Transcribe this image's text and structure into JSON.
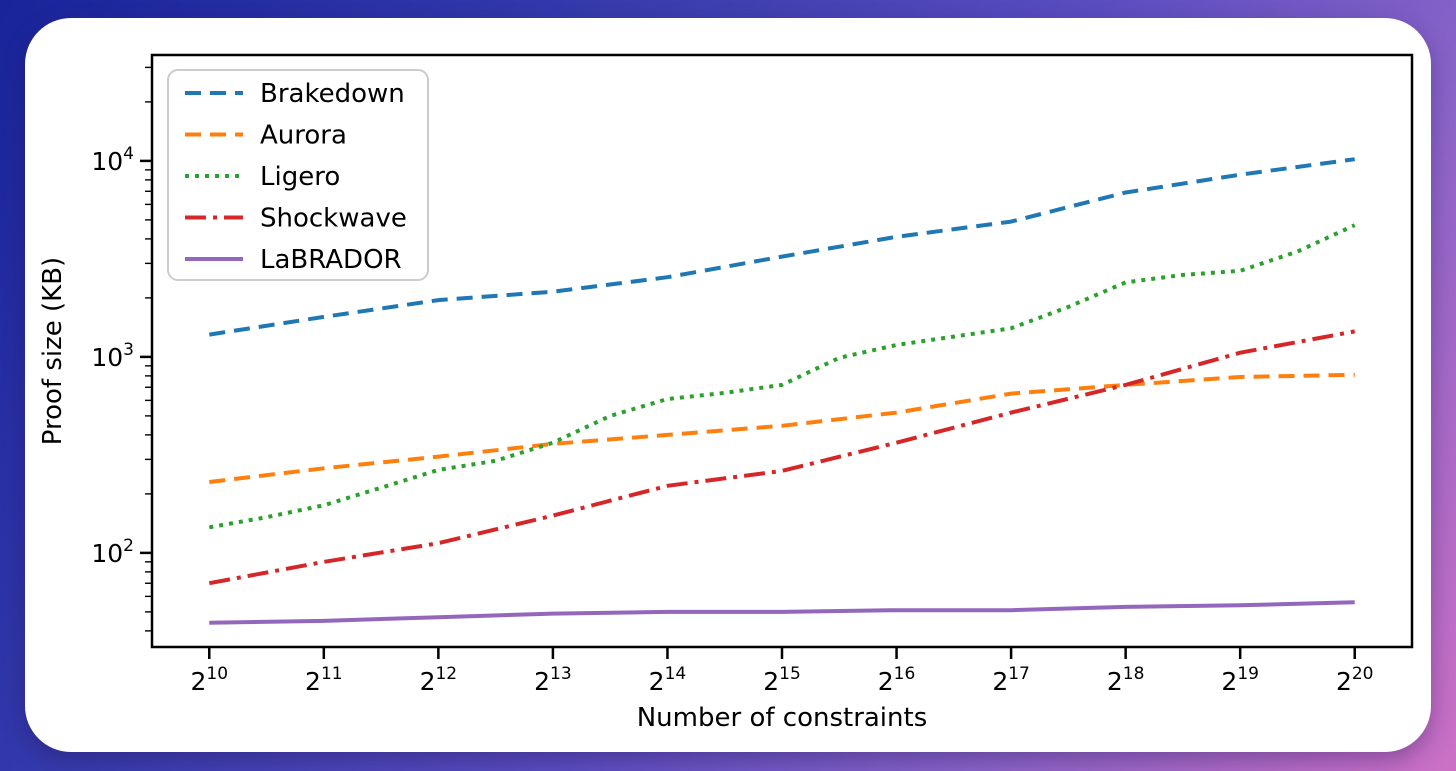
{
  "background": {
    "gradient_top_left": "#19249a",
    "gradient_mid": "#5a4dc0",
    "gradient_bottom_right": "#cc70c5",
    "card_color": "#ffffff"
  },
  "chart_data": {
    "type": "line",
    "title": "",
    "xlabel": "Number of constraints",
    "ylabel": "Proof size (KB)",
    "grid": false,
    "x_axis": {
      "scale": "log2-exponent",
      "tick_base": 2,
      "tick_exponents": [
        10,
        11,
        12,
        13,
        14,
        15,
        16,
        17,
        18,
        19,
        20
      ],
      "lim_exponents": [
        9.5,
        20.5
      ]
    },
    "y_axis": {
      "scale": "log",
      "tick_base": 10,
      "major_tick_exponents": [
        2,
        3,
        4
      ],
      "ylim": [
        33.1,
        34700
      ],
      "unit": "KB"
    },
    "legend": {
      "position": "upper left"
    },
    "series": [
      {
        "name": "Brakedown",
        "color": "#1f77b4",
        "linestyle": "dashed",
        "x_exponents": [
          10,
          11,
          12,
          13,
          14,
          15,
          16,
          17,
          18,
          19,
          20
        ],
        "values": [
          1300,
          1600,
          1950,
          2150,
          2550,
          3250,
          4100,
          4900,
          6900,
          8500,
          10200
        ]
      },
      {
        "name": "Aurora",
        "color": "#ff7f0e",
        "linestyle": "dashed",
        "x_exponents": [
          10,
          11,
          12,
          13,
          14,
          15,
          16,
          17,
          18,
          19,
          20
        ],
        "values": [
          230,
          270,
          310,
          360,
          400,
          445,
          520,
          650,
          720,
          790,
          810
        ]
      },
      {
        "name": "Ligero",
        "color": "#2ca02c",
        "linestyle": "dotted",
        "x_exponents": [
          10,
          10.5,
          11,
          11.5,
          12,
          12.5,
          13,
          13.5,
          14,
          14.5,
          15,
          15.5,
          16,
          16.5,
          17,
          17.5,
          18,
          18.5,
          19,
          19.5,
          20
        ],
        "values": [
          135,
          152,
          175,
          215,
          265,
          295,
          365,
          500,
          610,
          655,
          720,
          990,
          1150,
          1270,
          1400,
          1800,
          2400,
          2620,
          2750,
          3450,
          4700
        ]
      },
      {
        "name": "Shockwave",
        "color": "#d62728",
        "linestyle": "dashdot",
        "x_exponents": [
          10,
          11,
          12,
          13,
          14,
          15,
          16,
          17,
          18,
          19,
          20
        ],
        "values": [
          70,
          90,
          112,
          155,
          220,
          262,
          365,
          520,
          720,
          1050,
          1350
        ]
      },
      {
        "name": "LaBRADOR",
        "color": "#9467bd",
        "linestyle": "solid",
        "x_exponents": [
          10,
          11,
          12,
          13,
          14,
          15,
          16,
          17,
          18,
          19,
          20
        ],
        "values": [
          44,
          45,
          47,
          49,
          50,
          50,
          51,
          51,
          53,
          54,
          56
        ]
      }
    ]
  }
}
